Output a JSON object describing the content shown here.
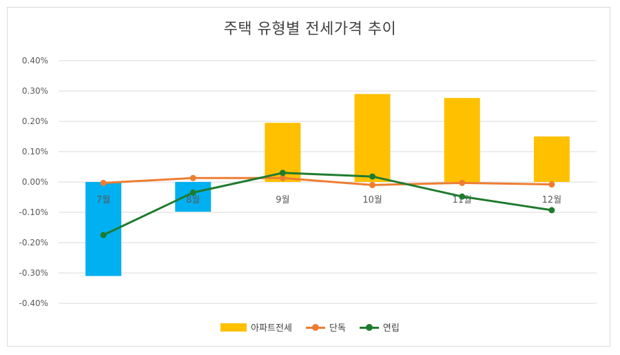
{
  "chart_data": {
    "type": "bar",
    "title": "주택 유형별 전세가격 추이",
    "categories": [
      "7월",
      "8월",
      "9월",
      "10월",
      "11월",
      "12월"
    ],
    "yticks": [
      "0.40%",
      "0.30%",
      "0.20%",
      "0.10%",
      "0.00%",
      "-0.10%",
      "-0.20%",
      "-0.30%",
      "-0.40%"
    ],
    "ylim": [
      -0.4,
      0.4
    ],
    "y_unit": "%",
    "grid": true,
    "legend": "bottom",
    "series": [
      {
        "name": "아파트전세",
        "kind": "bar",
        "color": "#FFC000",
        "values": [
          0.0,
          0.0,
          0.195,
          0.29,
          0.277,
          0.15
        ]
      },
      {
        "name": "단독",
        "kind": "line",
        "color": "#ED7D31",
        "values": [
          -0.003,
          0.013,
          0.013,
          -0.01,
          -0.003,
          -0.008
        ]
      },
      {
        "name": "연립",
        "kind": "line",
        "color": "#1E7B2E",
        "values": [
          -0.175,
          -0.035,
          0.03,
          0.018,
          -0.048,
          -0.093
        ]
      }
    ],
    "negative_bar_color": "#00B0F0",
    "negative_bar_values": [
      -0.31,
      -0.098,
      0,
      0,
      0,
      0
    ]
  }
}
